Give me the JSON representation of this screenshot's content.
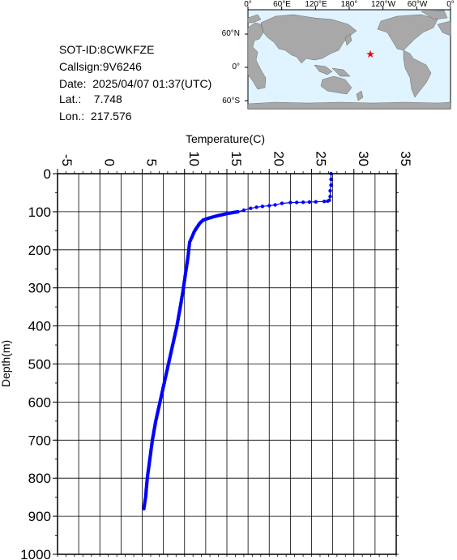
{
  "info": {
    "sot_id": "SOT-ID:8CWKFZE",
    "callsign": "Callsign:9V6246",
    "date": "Date:  2025/04/07 01:37(UTC)",
    "lat": "Lat.:    7.748",
    "lon": "Lon.:  217.576"
  },
  "map": {
    "lon_labels": [
      "0°",
      "60°E",
      "120°E",
      "180°",
      "120°W",
      "60°W",
      "0°"
    ],
    "lat_labels": [
      "60°N",
      "0°",
      "60°S"
    ],
    "marker": {
      "lat": 7.748,
      "lon": 217.576,
      "color": "#ff0000"
    },
    "ocean_color": "#dff4ff",
    "land_color": "#a8a8a8"
  },
  "chart_data": {
    "type": "line",
    "xlabel": "Temperature(C)",
    "ylabel": "Depth(m)",
    "xlim": [
      -5,
      35
    ],
    "ylim": [
      0,
      1000
    ],
    "y_inverted": true,
    "x_ticks": [
      -5,
      0,
      5,
      10,
      15,
      20,
      25,
      30,
      35
    ],
    "y_ticks": [
      0,
      100,
      200,
      300,
      400,
      500,
      600,
      700,
      800,
      900,
      1000
    ],
    "grid": true,
    "series": [
      {
        "color": "#0000ff",
        "points": [
          [
            27.3,
            0
          ],
          [
            27.3,
            15
          ],
          [
            27.3,
            30
          ],
          [
            27.2,
            45
          ],
          [
            27.2,
            60
          ],
          [
            27.1,
            70
          ],
          [
            26.9,
            72
          ],
          [
            26.5,
            73
          ],
          [
            25.5,
            74
          ],
          [
            24.0,
            75
          ],
          [
            22.5,
            76
          ],
          [
            21.5,
            78
          ],
          [
            20.7,
            82
          ],
          [
            20.0,
            84
          ],
          [
            19.2,
            86
          ],
          [
            18.5,
            88
          ],
          [
            17.8,
            91
          ],
          [
            17.0,
            96
          ],
          [
            16.3,
            100
          ],
          [
            15.5,
            103
          ],
          [
            14.8,
            106
          ],
          [
            14.0,
            110
          ],
          [
            13.3,
            114
          ],
          [
            12.7,
            118
          ],
          [
            12.2,
            122
          ],
          [
            11.8,
            130
          ],
          [
            11.5,
            140
          ],
          [
            11.2,
            150
          ],
          [
            11.0,
            160
          ],
          [
            10.8,
            170
          ],
          [
            10.6,
            180
          ],
          [
            10.5,
            200
          ],
          [
            10.4,
            220
          ],
          [
            10.2,
            250
          ],
          [
            10.0,
            280
          ],
          [
            9.8,
            310
          ],
          [
            9.5,
            350
          ],
          [
            9.1,
            400
          ],
          [
            8.6,
            450
          ],
          [
            8.1,
            500
          ],
          [
            7.6,
            550
          ],
          [
            7.1,
            600
          ],
          [
            6.6,
            650
          ],
          [
            6.2,
            700
          ],
          [
            5.9,
            750
          ],
          [
            5.6,
            800
          ],
          [
            5.4,
            850
          ],
          [
            5.2,
            880
          ]
        ]
      }
    ]
  }
}
